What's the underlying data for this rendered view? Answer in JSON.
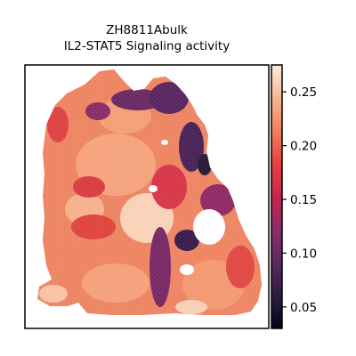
{
  "chart_data": {
    "type": "heatmap",
    "subtype": "spatial-hexbin",
    "title_lines": [
      "ZH8811Abulk",
      "IL2-STAT5 Signaling activity"
    ],
    "xlabel": "",
    "ylabel": "",
    "grid": false,
    "colorbar": {
      "colormap": "rocket",
      "range": [
        0.03,
        0.275
      ],
      "ticks": [
        0.05,
        0.1,
        0.15,
        0.2,
        0.25
      ],
      "tick_labels": [
        "0.05",
        "0.10",
        "0.15",
        "0.20",
        "0.25"
      ]
    }
  }
}
